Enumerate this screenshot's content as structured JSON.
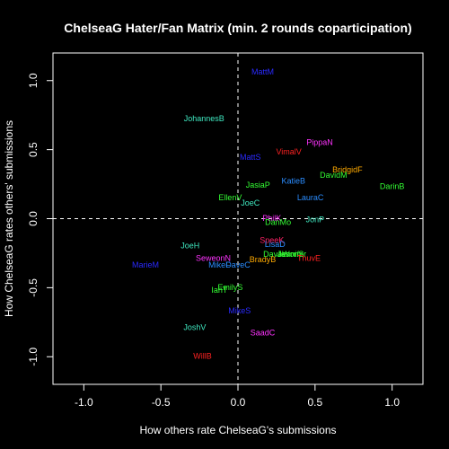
{
  "chart_data": {
    "type": "scatter",
    "title": "ChelseaG Hater/Fan Matrix (min. 2 rounds coparticipation)",
    "xlabel": "How others rate ChelseaG's submissions",
    "ylabel": "How ChelseaG rates others' submissions",
    "xlim": [
      -1.2,
      1.2
    ],
    "ylim": [
      -1.2,
      1.2
    ],
    "xticks": [
      -1.0,
      -0.5,
      0.0,
      0.5,
      1.0
    ],
    "yticks": [
      -1.0,
      -0.5,
      0.0,
      0.5,
      1.0
    ],
    "xtick_labels": [
      "-1.0",
      "-0.5",
      "0.0",
      "0.5",
      "1.0"
    ],
    "ytick_labels": [
      "-1.0",
      "-0.5",
      "0.0",
      "0.5",
      "1.0"
    ],
    "reference_lines": {
      "x": 0,
      "y": 0,
      "style": "dashed"
    },
    "points": [
      {
        "label": "MattM",
        "x": 0.16,
        "y": 1.06,
        "color": "#2a2aff"
      },
      {
        "label": "JohannesB",
        "x": -0.22,
        "y": 0.72,
        "color": "#3fe8c0"
      },
      {
        "label": "PippaN",
        "x": 0.53,
        "y": 0.55,
        "color": "#ff33ff"
      },
      {
        "label": "VimalV",
        "x": 0.33,
        "y": 0.48,
        "color": "#ff2222"
      },
      {
        "label": "MattS",
        "x": 0.08,
        "y": 0.44,
        "color": "#2a2aff"
      },
      {
        "label": "BridgidF",
        "x": 0.71,
        "y": 0.35,
        "color": "#ffaa00"
      },
      {
        "label": "DavidM",
        "x": 0.62,
        "y": 0.31,
        "color": "#33ff33"
      },
      {
        "label": "KatieB",
        "x": 0.36,
        "y": 0.27,
        "color": "#2a8cff"
      },
      {
        "label": "JasiaP",
        "x": 0.13,
        "y": 0.24,
        "color": "#33ff33"
      },
      {
        "label": "DarinB",
        "x": 1.0,
        "y": 0.23,
        "color": "#33ff33"
      },
      {
        "label": "EllenV",
        "x": -0.05,
        "y": 0.15,
        "color": "#33ff33"
      },
      {
        "label": "LauraC",
        "x": 0.47,
        "y": 0.15,
        "color": "#2a8cff"
      },
      {
        "label": "JoeC",
        "x": 0.08,
        "y": 0.11,
        "color": "#3fe8c0"
      },
      {
        "label": "PhilK",
        "x": 0.22,
        "y": 0.0,
        "color": "#ff33ff"
      },
      {
        "label": "DanMo",
        "x": 0.26,
        "y": -0.03,
        "color": "#33ff33"
      },
      {
        "label": "JonP",
        "x": 0.5,
        "y": -0.01,
        "color": "#3fe8c0"
      },
      {
        "label": "SpeeK",
        "x": 0.22,
        "y": -0.16,
        "color": "#ff2266"
      },
      {
        "label": "JoeH",
        "x": -0.31,
        "y": -0.2,
        "color": "#3fe8c0"
      },
      {
        "label": "LisaD",
        "x": 0.24,
        "y": -0.19,
        "color": "#2a8cff"
      },
      {
        "label": "DaveW",
        "x": 0.25,
        "y": -0.26,
        "color": "#33ff33"
      },
      {
        "label": "Jennifer",
        "x": 0.35,
        "y": -0.26,
        "color": "#33ff33"
      },
      {
        "label": "JasonS",
        "x": 0.34,
        "y": -0.26,
        "color": "#33ff33"
      },
      {
        "label": "ThuvE",
        "x": 0.46,
        "y": -0.29,
        "color": "#ff2222"
      },
      {
        "label": "BradyB",
        "x": 0.16,
        "y": -0.3,
        "color": "#ffaa00"
      },
      {
        "label": "SeweonN",
        "x": -0.16,
        "y": -0.29,
        "color": "#ff33ff"
      },
      {
        "label": "MarieM",
        "x": -0.6,
        "y": -0.34,
        "color": "#2a2aff"
      },
      {
        "label": "MikeF",
        "x": -0.12,
        "y": -0.34,
        "color": "#2a8cff"
      },
      {
        "label": "DaveC",
        "x": 0.0,
        "y": -0.34,
        "color": "#2a8cff"
      },
      {
        "label": "EmilyS",
        "x": -0.05,
        "y": -0.5,
        "color": "#33ff33"
      },
      {
        "label": "IanT",
        "x": -0.12,
        "y": -0.52,
        "color": "#33ff33"
      },
      {
        "label": "MikeS",
        "x": 0.01,
        "y": -0.67,
        "color": "#2a2aff"
      },
      {
        "label": "JoshV",
        "x": -0.28,
        "y": -0.79,
        "color": "#3fe8c0"
      },
      {
        "label": "SaadC",
        "x": 0.16,
        "y": -0.83,
        "color": "#ff33ff"
      },
      {
        "label": "WillB",
        "x": -0.23,
        "y": -1.0,
        "color": "#ff2222"
      }
    ]
  }
}
